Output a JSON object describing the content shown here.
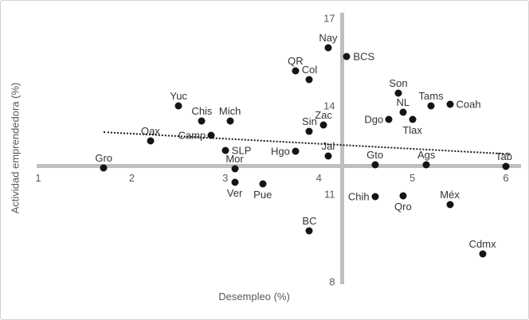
{
  "chart_data": {
    "type": "scatter",
    "title": "",
    "xlabel": "Desempleo (%)",
    "ylabel": "Actividad emprendedora (%)",
    "xlim": [
      1,
      6
    ],
    "ylim": [
      8,
      17
    ],
    "x_ticks": [
      1,
      2,
      3,
      4,
      5,
      6
    ],
    "y_ticks": [
      17,
      14,
      11,
      8
    ],
    "grid": false,
    "legend": false,
    "axis_cross": {
      "x": 4.25,
      "y": 11.95
    },
    "trendline": {
      "style": "dotted",
      "x1": 1.7,
      "y1": 13.15,
      "x2": 6.05,
      "y2": 12.4
    },
    "points": [
      {
        "name": "Gro",
        "x": 1.7,
        "y": 11.9,
        "label_pos": "above"
      },
      {
        "name": "Oax",
        "x": 2.2,
        "y": 12.8,
        "label_pos": "above"
      },
      {
        "name": "Yuc",
        "x": 2.5,
        "y": 14.0,
        "label_pos": "above"
      },
      {
        "name": "Chis",
        "x": 2.75,
        "y": 13.5,
        "label_pos": "above"
      },
      {
        "name": "Camp",
        "x": 2.85,
        "y": 13.0,
        "label_pos": "left"
      },
      {
        "name": "Mich",
        "x": 3.05,
        "y": 13.5,
        "label_pos": "above"
      },
      {
        "name": "SLP",
        "x": 3.0,
        "y": 12.5,
        "label_pos": "right"
      },
      {
        "name": "Mor",
        "x": 3.1,
        "y": 11.85,
        "label_pos": "above"
      },
      {
        "name": "Ver",
        "x": 3.1,
        "y": 11.4,
        "label_pos": "below"
      },
      {
        "name": "Pue",
        "x": 3.4,
        "y": 11.35,
        "label_pos": "below"
      },
      {
        "name": "Hgo",
        "x": 3.75,
        "y": 12.45,
        "label_pos": "left"
      },
      {
        "name": "Jal",
        "x": 4.1,
        "y": 12.3,
        "label_pos": "above"
      },
      {
        "name": "Sin",
        "x": 3.9,
        "y": 13.15,
        "label_pos": "above"
      },
      {
        "name": "Zac",
        "x": 4.05,
        "y": 13.35,
        "label_pos": "above"
      },
      {
        "name": "QR",
        "x": 3.75,
        "y": 15.2,
        "label_pos": "above"
      },
      {
        "name": "Col",
        "x": 3.9,
        "y": 14.9,
        "label_pos": "above"
      },
      {
        "name": "Nay",
        "x": 4.1,
        "y": 16.0,
        "label_pos": "above"
      },
      {
        "name": "BCS",
        "x": 4.3,
        "y": 15.7,
        "label_pos": "right"
      },
      {
        "name": "BC",
        "x": 3.9,
        "y": 9.75,
        "label_pos": "above"
      },
      {
        "name": "Chih",
        "x": 4.6,
        "y": 10.9,
        "label_pos": "left"
      },
      {
        "name": "Qro",
        "x": 4.9,
        "y": 10.95,
        "label_pos": "below"
      },
      {
        "name": "Gto",
        "x": 4.6,
        "y": 12.0,
        "label_pos": "above"
      },
      {
        "name": "Ags",
        "x": 5.15,
        "y": 12.0,
        "label_pos": "above"
      },
      {
        "name": "Tab",
        "x": 6.0,
        "y": 11.95,
        "label_pos": "above-left"
      },
      {
        "name": "Dgo",
        "x": 4.75,
        "y": 13.55,
        "label_pos": "left"
      },
      {
        "name": "NL",
        "x": 4.9,
        "y": 13.8,
        "label_pos": "above"
      },
      {
        "name": "Tlax",
        "x": 5.0,
        "y": 13.55,
        "label_pos": "below"
      },
      {
        "name": "Son",
        "x": 4.85,
        "y": 14.45,
        "label_pos": "above"
      },
      {
        "name": "Tams",
        "x": 5.2,
        "y": 14.0,
        "label_pos": "above"
      },
      {
        "name": "Coah",
        "x": 5.4,
        "y": 14.05,
        "label_pos": "right"
      },
      {
        "name": "Méx",
        "x": 5.4,
        "y": 10.65,
        "label_pos": "above"
      },
      {
        "name": "Cdmx",
        "x": 5.75,
        "y": 8.95,
        "label_pos": "above"
      }
    ],
    "colors": {
      "point": "#141414",
      "point_label": "#333333",
      "axis_line": "#bfbfbf",
      "tick_label": "#595959",
      "trendline": "#1a1a1a",
      "border": "#d2d2d2"
    }
  }
}
